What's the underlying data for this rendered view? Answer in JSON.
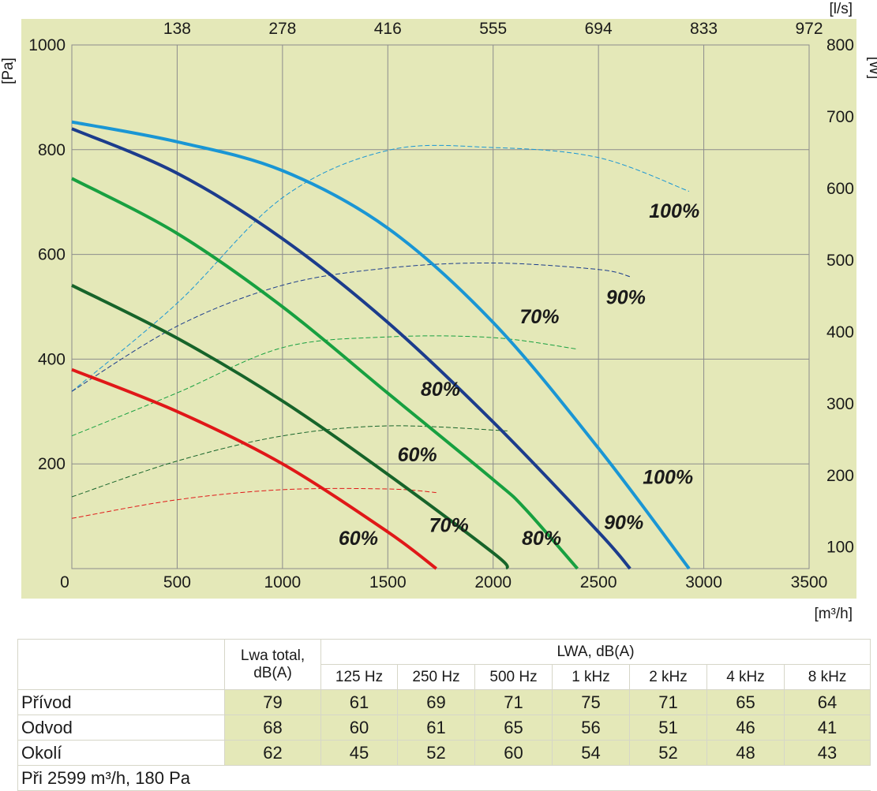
{
  "chart_data": {
    "type": "line",
    "units": {
      "left": "[Pa]",
      "right": "[W]",
      "top": "[l/s]",
      "bottom": "[m³/h]"
    },
    "x_axis": {
      "ticks": [
        0,
        500,
        1000,
        1500,
        2000,
        2500,
        3000,
        3500
      ],
      "range": [
        0,
        3500
      ]
    },
    "y_left": {
      "ticks": [
        200,
        400,
        600,
        800,
        1000
      ],
      "range": [
        0,
        1000
      ]
    },
    "y_right": {
      "ticks": [
        100,
        200,
        300,
        400,
        500,
        600,
        700,
        800
      ],
      "range": [
        70,
        800
      ]
    },
    "x_top": {
      "ticks": [
        "138",
        "278",
        "416",
        "555",
        "694",
        "833",
        "972"
      ],
      "positions_m3h": [
        500,
        1000,
        1500,
        2000,
        2500,
        3000,
        3500
      ]
    },
    "grid": true,
    "pressure_series": [
      {
        "speed": "100%",
        "color": "#1a96d4",
        "axis": "left",
        "x": [
          0,
          500,
          1000,
          1500,
          2000,
          2500,
          2930
        ],
        "y": [
          853,
          815,
          760,
          650,
          470,
          230,
          0
        ]
      },
      {
        "speed": "90%",
        "color": "#1c3c8c",
        "axis": "left",
        "x": [
          0,
          500,
          1000,
          1500,
          2000,
          2500,
          2650
        ],
        "y": [
          840,
          755,
          630,
          470,
          280,
          70,
          0
        ]
      },
      {
        "speed": "80%",
        "color": "#18a040",
        "axis": "left",
        "x": [
          0,
          500,
          1000,
          1500,
          2000,
          2150,
          2400
        ],
        "y": [
          745,
          640,
          500,
          335,
          170,
          115,
          0
        ]
      },
      {
        "speed": "70%",
        "color": "#17642a",
        "axis": "left",
        "x": [
          0,
          500,
          1000,
          1500,
          2000,
          2070
        ],
        "y": [
          541,
          440,
          320,
          180,
          30,
          0
        ]
      },
      {
        "speed": "60%",
        "color": "#e01818",
        "axis": "left",
        "x": [
          0,
          500,
          1000,
          1500,
          1730
        ],
        "y": [
          380,
          300,
          200,
          70,
          0
        ]
      }
    ],
    "power_series": [
      {
        "speed": "100%",
        "color": "#1a96d4",
        "axis": "right",
        "x": [
          0,
          500,
          1000,
          1500,
          2000,
          2500,
          2930
        ],
        "y": [
          317,
          440,
          587,
          653,
          657,
          643,
          596
        ]
      },
      {
        "speed": "90%",
        "color": "#1c3c8c",
        "axis": "right",
        "x": [
          0,
          500,
          1000,
          1500,
          2000,
          2500,
          2650
        ],
        "y": [
          317,
          408,
          465,
          489,
          496,
          487,
          477
        ]
      },
      {
        "speed": "80%",
        "color": "#18a040",
        "axis": "right",
        "x": [
          0,
          500,
          1000,
          1500,
          2000,
          2400
        ],
        "y": [
          255,
          315,
          378,
          393,
          392,
          376
        ]
      },
      {
        "speed": "70%",
        "color": "#17642a",
        "axis": "right",
        "x": [
          0,
          500,
          1000,
          1500,
          2070
        ],
        "y": [
          170,
          220,
          255,
          269,
          262
        ]
      },
      {
        "speed": "60%",
        "color": "#e01818",
        "axis": "right",
        "x": [
          0,
          500,
          1000,
          1500,
          1730
        ],
        "y": [
          140,
          166,
          180,
          181,
          176
        ]
      }
    ],
    "labels": [
      {
        "text": "100%",
        "x": 2860,
        "y": 670
      },
      {
        "text": "90%",
        "x": 2630,
        "y": 505
      },
      {
        "text": "70%",
        "x": 2220,
        "y": 468
      },
      {
        "text": "80%",
        "x": 1750,
        "y": 330
      },
      {
        "text": "60%",
        "x": 1640,
        "y": 205
      },
      {
        "text": "100%",
        "x": 2830,
        "y": 162
      },
      {
        "text": "90%",
        "x": 2620,
        "y": 75
      },
      {
        "text": "80%",
        "x": 2230,
        "y": 45
      },
      {
        "text": "70%",
        "x": 1790,
        "y": 70
      },
      {
        "text": "60%",
        "x": 1360,
        "y": 45
      }
    ]
  },
  "colors": {
    "plot_bg": "#e4e8b8",
    "grid": "#8c8c8c"
  },
  "table": {
    "header_total": [
      "Lwa total,",
      "dB(A)"
    ],
    "header_bands_title": "LWA, dB(A)",
    "bands": [
      "125 Hz",
      "250 Hz",
      "500 Hz",
      "1 kHz",
      "2 kHz",
      "4 kHz",
      "8 kHz"
    ],
    "rows": [
      {
        "label": "Přívod",
        "total": "79",
        "values": [
          "61",
          "69",
          "71",
          "75",
          "71",
          "65",
          "64"
        ]
      },
      {
        "label": "Odvod",
        "total": "68",
        "values": [
          "60",
          "61",
          "65",
          "56",
          "51",
          "46",
          "41"
        ]
      },
      {
        "label": "Okolí",
        "total": "62",
        "values": [
          "45",
          "52",
          "60",
          "54",
          "52",
          "48",
          "43"
        ]
      }
    ],
    "note": "Při 2599 m³/h, 180 Pa"
  }
}
